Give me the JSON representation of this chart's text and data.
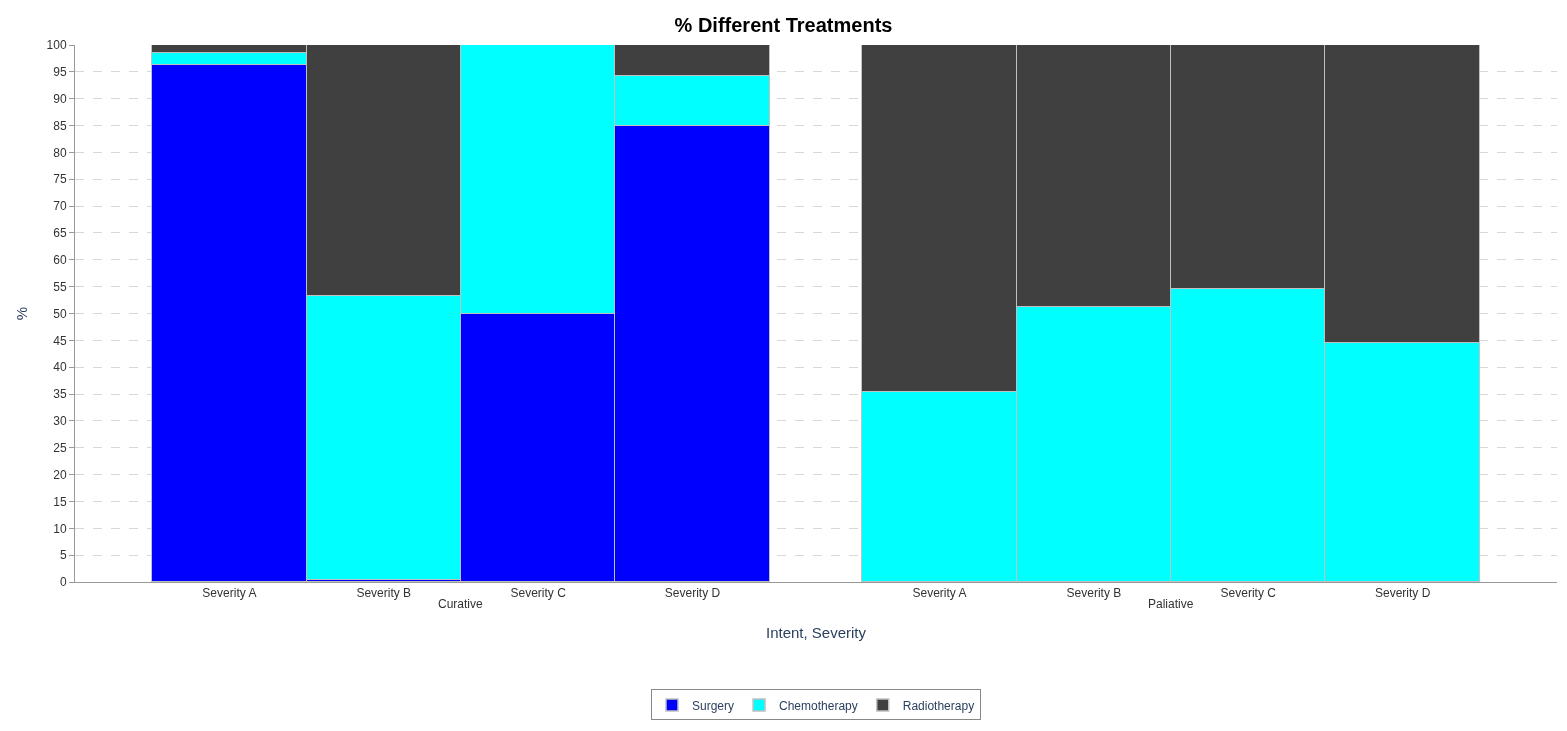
{
  "chart_data": {
    "type": "bar",
    "title": "% Different Treatments",
    "xlabel": "Intent, Severity",
    "ylabel": "%",
    "categories": [
      "Severity A",
      "Severity B",
      "Severity C",
      "Severity D",
      "Severity A",
      "Severity B",
      "Severity C",
      "Severity D"
    ],
    "annotations": [
      "Curative",
      "Paliative"
    ],
    "stacked": true,
    "ylim": [
      0,
      100
    ],
    "yticks": [
      0,
      5,
      10,
      15,
      20,
      25,
      30,
      35,
      40,
      45,
      50,
      55,
      60,
      65,
      70,
      75,
      80,
      85,
      90,
      95,
      100
    ],
    "grid": "y",
    "legend": "bottom",
    "series": [
      {
        "name": "Surgery",
        "color": "#0000ff",
        "values": [
          96.3,
          0.4,
          50,
          85,
          0,
          0,
          0,
          0
        ]
      },
      {
        "name": "Chemotherapy",
        "color": "#00ffff",
        "values": [
          2.3,
          52.8,
          50,
          9.2,
          35.4,
          51.3,
          54.5,
          44.6
        ]
      },
      {
        "name": "Radiotherapy",
        "color": "#404040",
        "values": [
          1.4,
          46.8,
          0,
          5.8,
          64.6,
          48.7,
          45.5,
          55.4
        ]
      }
    ]
  }
}
